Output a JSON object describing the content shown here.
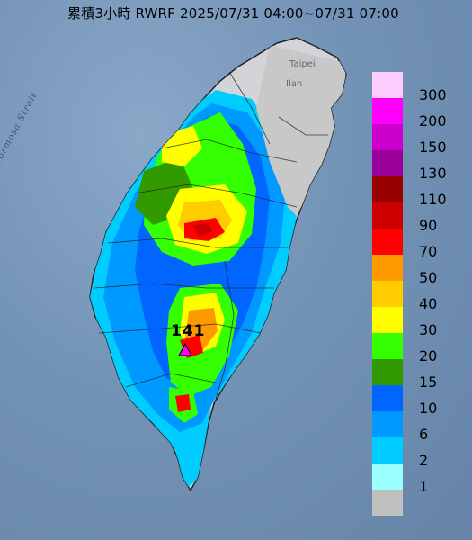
{
  "title": "累積3小時 RWRF 2025/07/31 04:00~07/31 07:00",
  "sea_label": "Formosa Strait",
  "city_labels": [
    "Taipei",
    "Ilan"
  ],
  "peak": {
    "value": "141",
    "marker": "magenta-triangle"
  },
  "legend": [
    {
      "label": "300",
      "color": "#ffccff"
    },
    {
      "label": "200",
      "color": "#ff00ff"
    },
    {
      "label": "150",
      "color": "#cc00cc"
    },
    {
      "label": "130",
      "color": "#990099"
    },
    {
      "label": "110",
      "color": "#990000"
    },
    {
      "label": "90",
      "color": "#cc0000"
    },
    {
      "label": "70",
      "color": "#ff0000"
    },
    {
      "label": "50",
      "color": "#ff9900"
    },
    {
      "label": "40",
      "color": "#ffcc00"
    },
    {
      "label": "30",
      "color": "#ffff00"
    },
    {
      "label": "20",
      "color": "#33ff00"
    },
    {
      "label": "15",
      "color": "#339900"
    },
    {
      "label": "10",
      "color": "#0066ff"
    },
    {
      "label": "6",
      "color": "#0099ff"
    },
    {
      "label": "2",
      "color": "#00ccff"
    },
    {
      "label": "1",
      "color": "#99ffff"
    },
    {
      "label": "",
      "color": "#c0c0c0"
    }
  ]
}
